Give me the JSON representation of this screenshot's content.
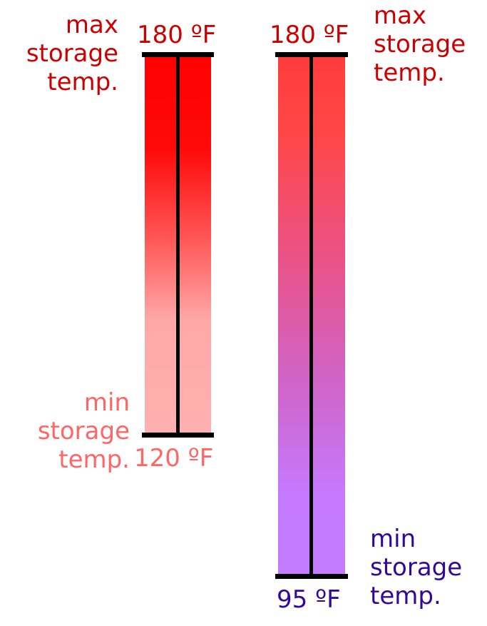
{
  "tanks": [
    {
      "top_temp": "180 ºF",
      "bottom_temp": "120 ºF",
      "max_label": [
        "max",
        "storage",
        "temp."
      ],
      "min_label": [
        "min",
        "storage",
        "temp."
      ],
      "gradient": [
        "#ff0000",
        "#ff0a0a",
        "#ff5555",
        "#ffa8a8",
        "#ffb0b0"
      ],
      "max_color": "#cc0000",
      "min_color": "#ff6666"
    },
    {
      "top_temp": "180 ºF",
      "bottom_temp": "95 ºF",
      "max_label": [
        "max",
        "storage",
        "temp."
      ],
      "min_label": [
        "min",
        "storage",
        "temp."
      ],
      "gradient": [
        "#ff3b3b",
        "#ff4747",
        "#e9538a",
        "#d064c6",
        "#c57aff",
        "#c47cff"
      ],
      "max_color": "#cc0000",
      "min_color": "#33079a"
    }
  ]
}
